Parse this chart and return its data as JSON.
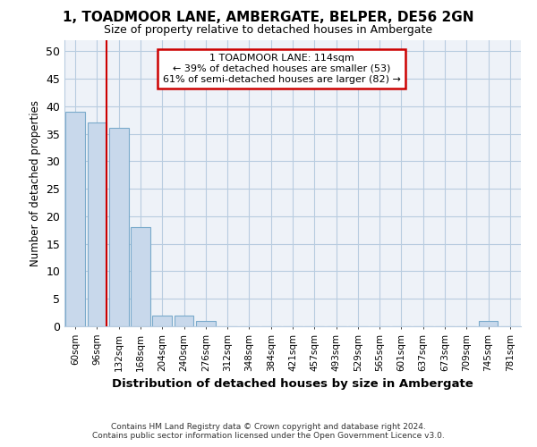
{
  "title": "1, TOADMOOR LANE, AMBERGATE, BELPER, DE56 2GN",
  "subtitle": "Size of property relative to detached houses in Ambergate",
  "xlabel": "Distribution of detached houses by size in Ambergate",
  "ylabel": "Number of detached properties",
  "footer_line1": "Contains HM Land Registry data © Crown copyright and database right 2024.",
  "footer_line2": "Contains public sector information licensed under the Open Government Licence v3.0.",
  "categories": [
    "60sqm",
    "96sqm",
    "132sqm",
    "168sqm",
    "204sqm",
    "240sqm",
    "276sqm",
    "312sqm",
    "348sqm",
    "384sqm",
    "421sqm",
    "457sqm",
    "493sqm",
    "529sqm",
    "565sqm",
    "601sqm",
    "637sqm",
    "673sqm",
    "709sqm",
    "745sqm",
    "781sqm"
  ],
  "values": [
    39,
    37,
    36,
    18,
    2,
    2,
    1,
    0,
    0,
    0,
    0,
    0,
    0,
    0,
    0,
    0,
    0,
    0,
    0,
    1,
    0
  ],
  "bar_color": "#c8d8eb",
  "bar_edge_color": "#7aaacb",
  "grid_color": "#b8cce0",
  "background_color": "#eef2f8",
  "vline_color": "#cc0000",
  "vline_x_idx": 1,
  "annotation_line1": "1 TOADMOOR LANE: 114sqm",
  "annotation_line2": "← 39% of detached houses are smaller (53)",
  "annotation_line3": "61% of semi-detached houses are larger (82) →",
  "annotation_box_color": "#ffffff",
  "annotation_box_edge_color": "#cc0000",
  "ylim": [
    0,
    52
  ],
  "yticks": [
    0,
    5,
    10,
    15,
    20,
    25,
    30,
    35,
    40,
    45,
    50
  ]
}
